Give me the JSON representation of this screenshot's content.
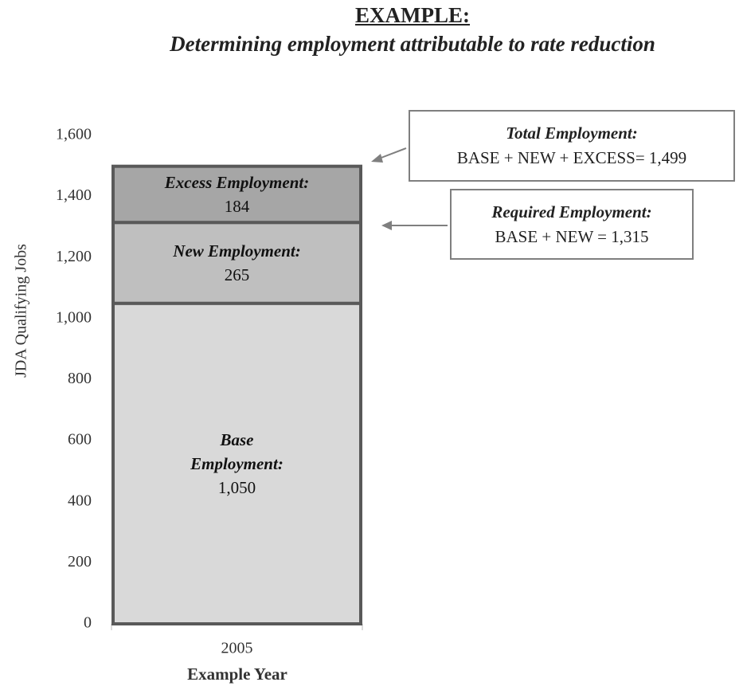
{
  "chart_data": {
    "type": "stacked_bar",
    "title": "EXAMPLE:",
    "subtitle": "Determining employment attributable to rate reduction",
    "y_label": "JDA Qualifying Jobs",
    "x_label": "Example Year",
    "categories": [
      "2005"
    ],
    "series": [
      {
        "name": "Base Employment:",
        "color": "#d9d9d9",
        "values": [
          1050
        ],
        "value_labels": [
          "1,050"
        ]
      },
      {
        "name": "New Employment:",
        "color": "#bfbfbf",
        "values": [
          265
        ]
      },
      {
        "name": "Excess Employment:",
        "color": "#a6a6a6",
        "values": [
          184
        ]
      }
    ],
    "ylim": [
      0,
      1600
    ],
    "yticks": [
      0,
      200,
      400,
      600,
      800,
      {
        "value": 1000,
        "label": "1,000"
      },
      {
        "value": 1200,
        "label": "1,200"
      },
      {
        "value": 1400,
        "label": "1,400"
      },
      {
        "value": 1600,
        "label": "1,600"
      }
    ],
    "annotations": [
      {
        "title": "Total Employment:",
        "text": "BASE + NEW + EXCESS= 1,499"
      },
      {
        "title": "Required Employment:",
        "text": "BASE + NEW = 1,315"
      }
    ]
  }
}
